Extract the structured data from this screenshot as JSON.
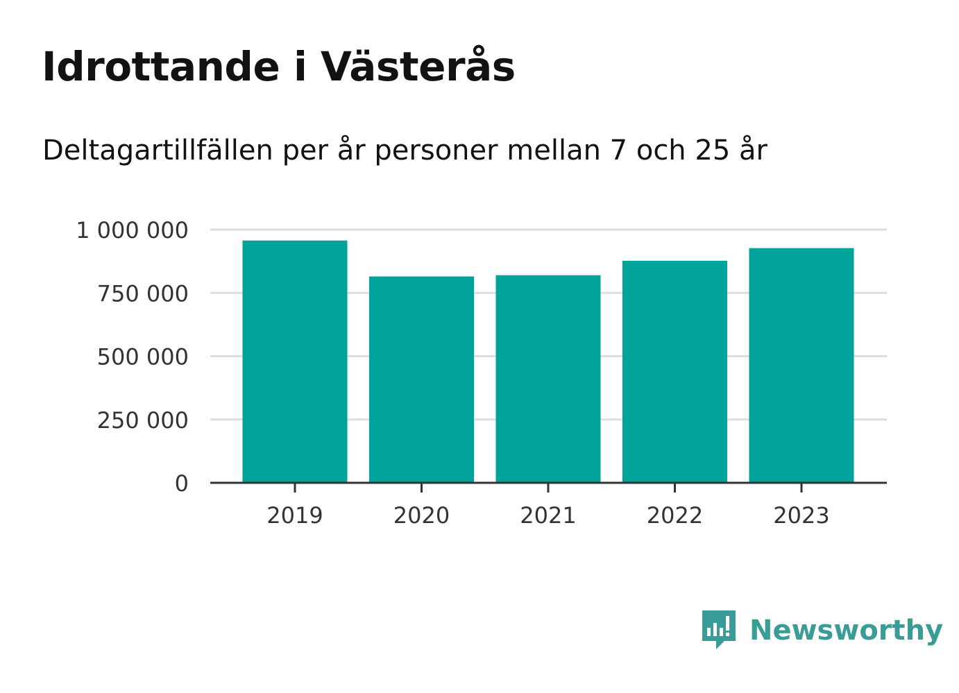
{
  "header": {
    "title": "Idrottande i Västerås",
    "subtitle": "Deltagartillfällen per år personer mellan 7 och 25 år"
  },
  "chart_data": {
    "type": "bar",
    "title": "Idrottande i Västerås",
    "subtitle": "Deltagartillfällen per år personer mellan 7 och 25 år",
    "categories": [
      "2019",
      "2020",
      "2021",
      "2022",
      "2023"
    ],
    "values": [
      957000,
      815000,
      820000,
      877000,
      927000
    ],
    "xlabel": "",
    "ylabel": "",
    "ylim": [
      0,
      1000000
    ],
    "yticks": [
      0,
      250000,
      500000,
      750000,
      1000000
    ],
    "ytick_labels": [
      "0",
      "250 000",
      "500 000",
      "750 000",
      "1 000 000"
    ],
    "grid": true,
    "legend": "none",
    "bar_color": "#00a39a",
    "grid_color": "#dddddd",
    "axis_color": "#333333"
  },
  "branding": {
    "name": "Newsworthy",
    "icon": "newsworthy-logo-icon",
    "color": "#3a9c97"
  }
}
